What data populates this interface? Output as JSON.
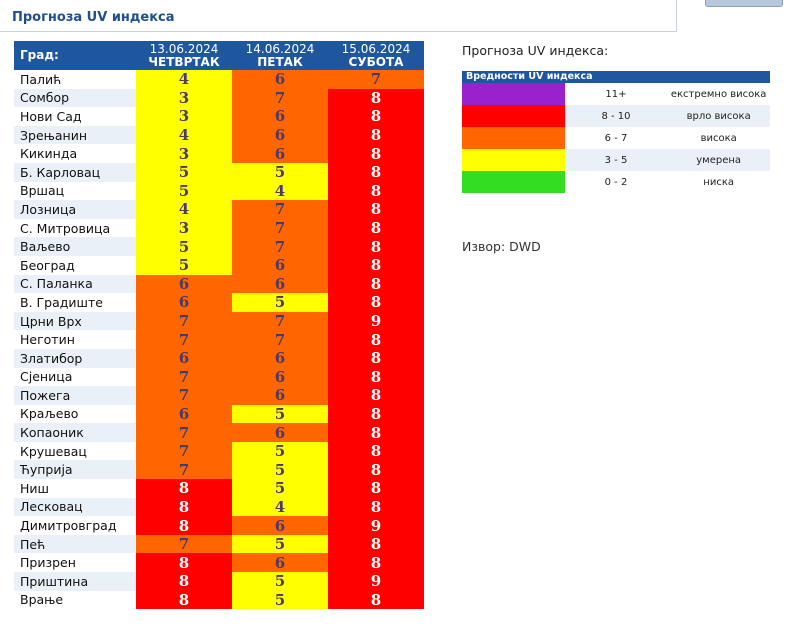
{
  "page": {
    "title": "Прогноза UV индекса"
  },
  "table": {
    "city_header": "Град:",
    "days": [
      {
        "date": "13.06.2024",
        "weekday": "ЧЕТВРТАК"
      },
      {
        "date": "14.06.2024",
        "weekday": "ПЕТАК"
      },
      {
        "date": "15.06.2024",
        "weekday": "СУБОТА"
      }
    ],
    "rows": [
      {
        "city": "Палић",
        "values": [
          "4",
          "6",
          "7"
        ]
      },
      {
        "city": "Сомбор",
        "values": [
          "3",
          "7",
          "8"
        ]
      },
      {
        "city": "Нови Сад",
        "values": [
          "3",
          "6",
          "8"
        ]
      },
      {
        "city": "Зрењанин",
        "values": [
          "4",
          "6",
          "8"
        ]
      },
      {
        "city": "Кикинда",
        "values": [
          "3",
          "6",
          "8"
        ]
      },
      {
        "city": "Б. Карловац",
        "values": [
          "5",
          "5",
          "8"
        ]
      },
      {
        "city": "Вршац",
        "values": [
          "5",
          "4",
          "8"
        ]
      },
      {
        "city": "Лозница",
        "values": [
          "4",
          "7",
          "8"
        ]
      },
      {
        "city": "С. Митровица",
        "values": [
          "3",
          "7",
          "8"
        ]
      },
      {
        "city": "Ваљево",
        "values": [
          "5",
          "7",
          "8"
        ]
      },
      {
        "city": "Београд",
        "values": [
          "5",
          "6",
          "8"
        ]
      },
      {
        "city": "С. Паланка",
        "values": [
          "6",
          "6",
          "8"
        ]
      },
      {
        "city": "В. Градиште",
        "values": [
          "6",
          "5",
          "8"
        ]
      },
      {
        "city": "Црни Врх",
        "values": [
          "7",
          "7",
          "9"
        ]
      },
      {
        "city": "Неготин",
        "values": [
          "7",
          "7",
          "8"
        ]
      },
      {
        "city": "Златибор",
        "values": [
          "6",
          "6",
          "8"
        ]
      },
      {
        "city": "Сјеница",
        "values": [
          "7",
          "6",
          "8"
        ]
      },
      {
        "city": "Пожега",
        "values": [
          "7",
          "6",
          "8"
        ]
      },
      {
        "city": "Краљево",
        "values": [
          "6",
          "5",
          "8"
        ]
      },
      {
        "city": "Копаоник",
        "values": [
          "7",
          "6",
          "8"
        ]
      },
      {
        "city": "Крушевац",
        "values": [
          "7",
          "5",
          "8"
        ]
      },
      {
        "city": "Ћуприја",
        "values": [
          "7",
          "5",
          "8"
        ]
      },
      {
        "city": "Ниш",
        "values": [
          "8",
          "5",
          "8"
        ]
      },
      {
        "city": "Лесковац",
        "values": [
          "8",
          "4",
          "8"
        ]
      },
      {
        "city": "Димитровград",
        "values": [
          "8",
          "6",
          "9"
        ]
      },
      {
        "city": "Пећ",
        "values": [
          "7",
          "5",
          "8"
        ]
      },
      {
        "city": "Призрен",
        "values": [
          "8",
          "6",
          "8"
        ]
      },
      {
        "city": "Приштина",
        "values": [
          "8",
          "5",
          "9"
        ]
      },
      {
        "city": "Врање",
        "values": [
          "8",
          "5",
          "8"
        ]
      }
    ]
  },
  "legend": {
    "heading": "Прогноза UV индекса:",
    "table_header": "Вредности UV индекса",
    "levels": [
      {
        "range": "11+",
        "label": "екстремно висока",
        "color": "#9922cc"
      },
      {
        "range": "8 - 10",
        "label": "врло висока",
        "color": "#ff0000"
      },
      {
        "range": "6 - 7",
        "label": "висока",
        "color": "#ff6600"
      },
      {
        "range": "3 - 5",
        "label": "умерена",
        "color": "#ffff00"
      },
      {
        "range": "0 - 2",
        "label": "ниска",
        "color": "#33dd22"
      }
    ]
  },
  "source": "Извор: DWD"
}
